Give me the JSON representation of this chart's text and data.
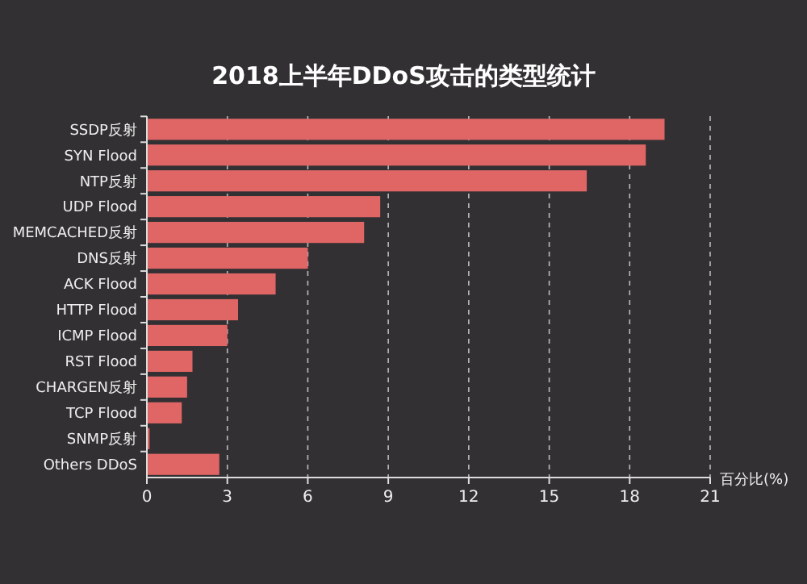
{
  "chart_data": {
    "type": "bar",
    "orientation": "horizontal",
    "title": "2018上半年DDoS攻击的类型统计",
    "xlabel": "百分比(%)",
    "categories": [
      "SSDP反射",
      "SYN Flood",
      "NTP反射",
      "UDP Flood",
      "MEMCACHED反射",
      "DNS反射",
      "ACK Flood",
      "HTTP Flood",
      "ICMP Flood",
      "RST Flood",
      "CHARGEN反射",
      "TCP Flood",
      "SNMP反射",
      "Others DDoS"
    ],
    "values": [
      19.3,
      18.6,
      16.4,
      8.7,
      8.1,
      6.0,
      4.8,
      3.4,
      3.0,
      1.7,
      1.5,
      1.3,
      0.1,
      2.7
    ],
    "color": "#e06666",
    "xlim": [
      0,
      21
    ],
    "xticks": [
      0,
      3,
      6,
      9,
      12,
      15,
      18,
      21
    ],
    "grid": "x"
  }
}
